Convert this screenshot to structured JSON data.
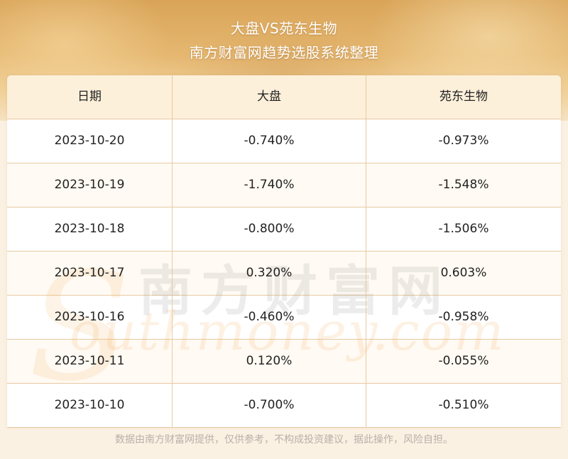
{
  "header": {
    "title": "大盘VS苑东生物",
    "subtitle": "南方财富网趋势选股系统整理"
  },
  "table": {
    "columns": [
      "日期",
      "大盘",
      "苑东生物"
    ],
    "rows": [
      [
        "2023-10-20",
        "-0.740%",
        "-0.973%"
      ],
      [
        "2023-10-19",
        "-1.740%",
        "-1.548%"
      ],
      [
        "2023-10-18",
        "-0.800%",
        "-1.506%"
      ],
      [
        "2023-10-17",
        "0.320%",
        "0.603%"
      ],
      [
        "2023-10-16",
        "-0.460%",
        "-0.958%"
      ],
      [
        "2023-10-11",
        "0.120%",
        "-0.055%"
      ],
      [
        "2023-10-10",
        "-0.700%",
        "-0.510%"
      ]
    ]
  },
  "watermark": {
    "cn": "南方财富网",
    "en": "outhmoney.com",
    "s": "S"
  },
  "footer": {
    "disclaimer": "数据由南方财富网提供，仅供参考，不构成投资建议，据此操作，风险自担。"
  },
  "colors": {
    "banner": "#e0ad62",
    "header_row": "#fdf0da",
    "grid_line": "#e8c9a2"
  }
}
